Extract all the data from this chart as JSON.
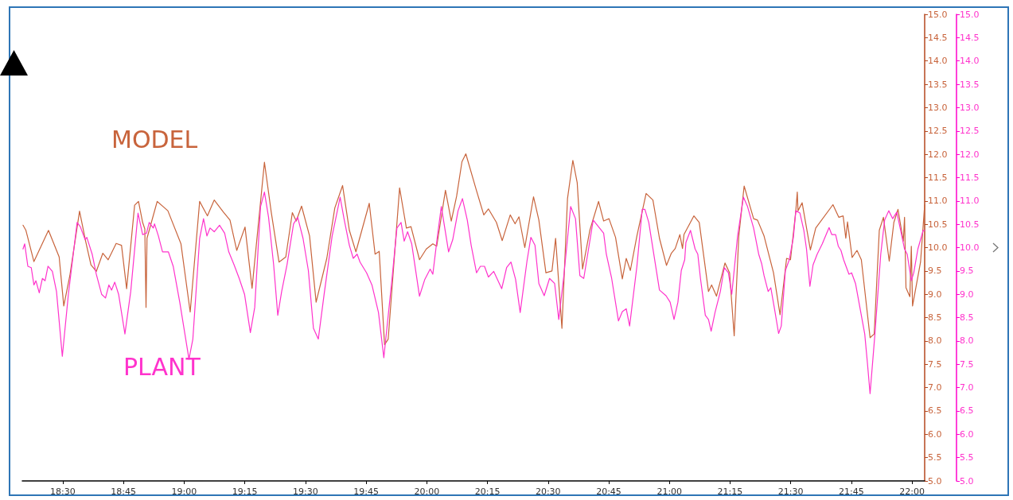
{
  "chart_data": {
    "type": "line",
    "xlim": [
      18.333,
      22.052
    ],
    "xticks": [
      {
        "value": 18.5,
        "label": "18:30"
      },
      {
        "value": 18.75,
        "label": "18:45"
      },
      {
        "value": 19,
        "label": "19:00"
      },
      {
        "value": 19.25,
        "label": "19:15"
      },
      {
        "value": 19.5,
        "label": "19:30"
      },
      {
        "value": 19.75,
        "label": "19:45"
      },
      {
        "value": 20,
        "label": "20:00"
      },
      {
        "value": 20.25,
        "label": "20:15"
      },
      {
        "value": 20.5,
        "label": "20:30"
      },
      {
        "value": 20.75,
        "label": "20:45"
      },
      {
        "value": 21,
        "label": "21:00"
      },
      {
        "value": 21.25,
        "label": "21:15"
      },
      {
        "value": 21.5,
        "label": "21:30"
      },
      {
        "value": 21.75,
        "label": "21:45"
      },
      {
        "value": 22,
        "label": "22:00"
      }
    ],
    "ylim": [
      5,
      15
    ],
    "yticks": [
      {
        "value": 5,
        "label": "5.0"
      },
      {
        "value": 5.5,
        "label": "5.5"
      },
      {
        "value": 6,
        "label": "6.0"
      },
      {
        "value": 6.5,
        "label": "6.5"
      },
      {
        "value": 7,
        "label": "7.0"
      },
      {
        "value": 7.5,
        "label": "7.5"
      },
      {
        "value": 8,
        "label": "8.0"
      },
      {
        "value": 8.5,
        "label": "8.5"
      },
      {
        "value": 9,
        "label": "9.0"
      },
      {
        "value": 9.5,
        "label": "9.5"
      },
      {
        "value": 10,
        "label": "10.0"
      },
      {
        "value": 10.5,
        "label": "10.5"
      },
      {
        "value": 11,
        "label": "11.0"
      },
      {
        "value": 11.5,
        "label": "11.5"
      },
      {
        "value": 12,
        "label": "12.0"
      },
      {
        "value": 12.5,
        "label": "12.5"
      },
      {
        "value": 13,
        "label": "13.0"
      },
      {
        "value": 13.5,
        "label": "13.5"
      },
      {
        "value": 14,
        "label": "14.0"
      },
      {
        "value": 14.5,
        "label": "14.5"
      },
      {
        "value": 15,
        "label": "15.0"
      }
    ],
    "y2lim": [
      5,
      15
    ],
    "y2ticks": [
      {
        "value": 5,
        "label": "5.0"
      },
      {
        "value": 5.5,
        "label": "5.5"
      },
      {
        "value": 6,
        "label": "6.0"
      },
      {
        "value": 6.5,
        "label": "6.5"
      },
      {
        "value": 7,
        "label": "7.0"
      },
      {
        "value": 7.5,
        "label": "7.5"
      },
      {
        "value": 8,
        "label": "8.0"
      },
      {
        "value": 8.5,
        "label": "8.5"
      },
      {
        "value": 9,
        "label": "9.0"
      },
      {
        "value": 9.5,
        "label": "9.5"
      },
      {
        "value": 10,
        "label": "10.0"
      },
      {
        "value": 10.5,
        "label": "10.5"
      },
      {
        "value": 11,
        "label": "11.0"
      },
      {
        "value": 11.5,
        "label": "11.5"
      },
      {
        "value": 12,
        "label": "12.0"
      },
      {
        "value": 12.5,
        "label": "12.5"
      },
      {
        "value": 13,
        "label": "13.0"
      },
      {
        "value": 13.5,
        "label": "13.5"
      },
      {
        "value": 14,
        "label": "14.0"
      },
      {
        "value": 14.5,
        "label": "14.5"
      },
      {
        "value": 15,
        "label": "15.0"
      }
    ],
    "grid": false,
    "legend": false,
    "marker": "none",
    "line_style": "solid",
    "series": [
      {
        "name": "MODEL",
        "color": "#c8643c",
        "x": [
          18.336,
          18.348,
          18.381,
          18.441,
          18.485,
          18.504,
          18.529,
          18.569,
          18.594,
          18.616,
          18.638,
          18.665,
          18.687,
          18.72,
          18.742,
          18.763,
          18.796,
          18.812,
          18.829,
          18.838,
          18.843,
          18.847,
          18.856,
          18.889,
          18.933,
          18.987,
          19.025,
          19.064,
          19.096,
          19.124,
          19.162,
          19.189,
          19.217,
          19.251,
          19.28,
          19.331,
          19.359,
          19.391,
          19.419,
          19.446,
          19.462,
          19.484,
          19.517,
          19.544,
          19.588,
          19.621,
          19.653,
          19.681,
          19.708,
          19.763,
          19.787,
          19.804,
          19.826,
          19.841,
          19.888,
          19.916,
          19.935,
          19.97,
          19.998,
          20.025,
          20.041,
          20.077,
          20.101,
          20.123,
          20.145,
          20.161,
          20.205,
          20.235,
          20.254,
          20.287,
          20.311,
          20.344,
          20.364,
          20.38,
          20.404,
          20.44,
          20.462,
          20.491,
          20.516,
          20.531,
          20.557,
          20.58,
          20.602,
          20.62,
          20.642,
          20.672,
          20.708,
          20.729,
          20.751,
          20.778,
          20.806,
          20.822,
          20.839,
          20.866,
          20.904,
          20.932,
          20.959,
          20.988,
          21.008,
          21.024,
          21.043,
          21.054,
          21.06,
          21.101,
          21.123,
          21.161,
          21.174,
          21.194,
          21.229,
          21.248,
          21.267,
          21.286,
          21.308,
          21.347,
          21.363,
          21.39,
          21.429,
          21.456,
          21.483,
          21.499,
          21.521,
          21.527,
          21.53,
          21.547,
          21.581,
          21.603,
          21.674,
          21.698,
          21.716,
          21.727,
          21.734,
          21.753,
          21.773,
          21.791,
          21.827,
          21.844,
          21.865,
          21.882,
          21.906,
          21.925,
          21.942,
          21.964,
          21.969,
          21.975,
          21.991,
          21.997,
          22.002,
          22.035,
          22.052
        ],
        "values": [
          10.48,
          10.37,
          9.7,
          10.37,
          9.8,
          8.75,
          9.4,
          10.78,
          10.14,
          9.63,
          9.49,
          9.88,
          9.74,
          10.09,
          10.05,
          9.12,
          10.91,
          10.99,
          10.54,
          10.4,
          8.72,
          10.2,
          10.37,
          10.99,
          10.79,
          10.08,
          8.62,
          10.99,
          10.68,
          11.02,
          10.76,
          10.59,
          9.94,
          10.44,
          9.13,
          11.83,
          10.76,
          9.69,
          9.8,
          10.75,
          10.57,
          10.89,
          10.25,
          8.83,
          9.77,
          10.85,
          11.33,
          10.37,
          9.91,
          10.95,
          9.86,
          9.92,
          7.92,
          8.04,
          11.28,
          10.42,
          10.45,
          9.74,
          9.97,
          10.08,
          10.03,
          11.23,
          10.57,
          11.1,
          11.84,
          12.01,
          11.22,
          10.7,
          10.83,
          10.54,
          10.15,
          10.7,
          10.51,
          10.66,
          10.0,
          11.09,
          10.59,
          9.46,
          9.5,
          10.2,
          8.27,
          11.05,
          11.87,
          11.39,
          9.54,
          10.37,
          10.99,
          10.57,
          10.62,
          10.22,
          9.33,
          9.77,
          9.51,
          10.25,
          11.16,
          11.02,
          10.2,
          9.62,
          9.88,
          9.98,
          10.28,
          9.98,
          10.28,
          10.68,
          10.54,
          9.06,
          9.2,
          8.96,
          9.67,
          9.46,
          8.11,
          10.25,
          11.32,
          10.62,
          10.59,
          10.25,
          9.46,
          8.56,
          9.77,
          9.74,
          10.79,
          11.19,
          10.79,
          10.96,
          9.95,
          10.42,
          10.92,
          10.65,
          10.68,
          10.2,
          10.55,
          9.79,
          9.94,
          9.74,
          8.07,
          8.15,
          10.37,
          10.65,
          9.71,
          10.54,
          10.82,
          10.14,
          10.65,
          9.14,
          8.95,
          10.03,
          8.75,
          9.69,
          10.92
        ]
      },
      {
        "name": "PLANT",
        "color": "#ff33cc",
        "axis": "y2",
        "x": [
          18.336,
          18.343,
          18.356,
          18.37,
          18.381,
          18.389,
          18.403,
          18.416,
          18.427,
          18.439,
          18.457,
          18.474,
          18.498,
          18.523,
          18.559,
          18.572,
          18.592,
          18.599,
          18.621,
          18.638,
          18.66,
          18.676,
          18.69,
          18.701,
          18.714,
          18.73,
          18.756,
          18.78,
          18.81,
          18.829,
          18.845,
          18.856,
          18.873,
          18.878,
          18.894,
          18.911,
          18.935,
          18.955,
          18.982,
          19.02,
          19.036,
          19.064,
          19.08,
          19.094,
          19.107,
          19.124,
          19.146,
          19.167,
          19.184,
          19.206,
          19.227,
          19.249,
          19.273,
          19.291,
          19.315,
          19.331,
          19.348,
          19.369,
          19.386,
          19.402,
          19.424,
          19.451,
          19.468,
          19.49,
          19.512,
          19.533,
          19.553,
          19.577,
          19.61,
          19.643,
          19.659,
          19.681,
          19.697,
          19.713,
          19.725,
          19.752,
          19.774,
          19.801,
          19.823,
          19.856,
          19.877,
          19.894,
          19.907,
          19.921,
          19.938,
          19.97,
          19.992,
          20.014,
          20.025,
          20.044,
          20.06,
          20.09,
          20.107,
          20.129,
          20.147,
          20.167,
          20.183,
          20.205,
          20.221,
          20.238,
          20.254,
          20.276,
          20.309,
          20.329,
          20.347,
          20.366,
          20.385,
          20.413,
          20.429,
          20.446,
          20.462,
          20.484,
          20.506,
          20.527,
          20.544,
          20.565,
          20.593,
          20.613,
          20.631,
          20.647,
          20.686,
          20.729,
          20.74,
          20.762,
          20.79,
          20.806,
          20.822,
          20.836,
          20.866,
          20.888,
          20.899,
          20.915,
          20.959,
          20.986,
          21.003,
          21.019,
          21.035,
          21.049,
          21.063,
          21.068,
          21.087,
          21.106,
          21.117,
          21.128,
          21.148,
          21.161,
          21.172,
          21.188,
          21.21,
          21.226,
          21.243,
          21.257,
          21.281,
          21.305,
          21.322,
          21.336,
          21.347,
          21.368,
          21.38,
          21.39,
          21.407,
          21.418,
          21.434,
          21.45,
          21.461,
          21.478,
          21.494,
          21.511,
          21.521,
          21.538,
          21.554,
          21.565,
          21.579,
          21.592,
          21.609,
          21.63,
          21.658,
          21.669,
          21.685,
          21.696,
          21.707,
          21.718,
          21.74,
          21.751,
          21.767,
          21.805,
          21.816,
          21.827,
          21.847,
          21.871,
          21.887,
          21.904,
          21.92,
          21.937,
          21.953,
          21.969,
          21.98,
          21.997,
          22.007,
          22.024,
          22.046,
          22.052
        ],
        "values": [
          9.97,
          10.08,
          9.6,
          9.57,
          9.2,
          9.29,
          9.03,
          9.34,
          9.29,
          9.6,
          9.49,
          9.06,
          7.67,
          9.0,
          10.54,
          10.45,
          10.17,
          10.22,
          9.86,
          9.43,
          9.0,
          8.92,
          9.2,
          9.09,
          9.26,
          9.0,
          8.15,
          9.06,
          10.74,
          10.28,
          10.31,
          10.54,
          10.42,
          10.51,
          10.25,
          9.91,
          9.91,
          9.6,
          8.83,
          7.61,
          8.04,
          10.2,
          10.62,
          10.25,
          10.42,
          10.34,
          10.48,
          10.31,
          9.91,
          9.63,
          9.34,
          9.0,
          8.18,
          8.72,
          10.88,
          11.19,
          10.65,
          9.63,
          8.55,
          9.06,
          9.63,
          10.51,
          10.65,
          10.2,
          9.51,
          8.27,
          8.04,
          9.0,
          10.25,
          11.08,
          10.62,
          10.05,
          9.77,
          9.86,
          9.69,
          9.46,
          9.2,
          8.61,
          7.64,
          9.29,
          10.42,
          10.54,
          10.14,
          10.34,
          10.08,
          8.96,
          9.32,
          9.54,
          9.43,
          10.25,
          10.88,
          9.91,
          10.17,
          10.79,
          11.05,
          10.59,
          10.05,
          9.46,
          9.6,
          9.6,
          9.37,
          9.49,
          9.12,
          9.57,
          9.69,
          9.32,
          8.61,
          9.71,
          10.22,
          10.05,
          9.23,
          8.97,
          9.34,
          9.23,
          8.46,
          9.4,
          10.88,
          10.62,
          9.4,
          9.34,
          10.59,
          10.31,
          9.86,
          9.34,
          8.43,
          8.63,
          8.69,
          8.32,
          9.6,
          10.82,
          10.82,
          10.54,
          9.09,
          8.97,
          8.83,
          8.46,
          8.83,
          9.51,
          9.74,
          10.11,
          10.37,
          9.97,
          9.86,
          9.34,
          8.55,
          8.46,
          8.21,
          8.61,
          9.06,
          9.57,
          9.46,
          9.0,
          10.25,
          11.08,
          10.88,
          10.62,
          10.42,
          9.86,
          9.66,
          9.4,
          9.06,
          9.14,
          8.66,
          8.16,
          8.32,
          9.51,
          9.74,
          10.22,
          10.79,
          10.74,
          10.37,
          9.97,
          9.17,
          9.63,
          9.86,
          10.08,
          10.43,
          10.28,
          10.28,
          10.03,
          9.94,
          9.74,
          9.43,
          9.46,
          9.23,
          8.15,
          7.53,
          6.87,
          8.15,
          9.86,
          10.59,
          10.79,
          10.62,
          10.76,
          10.37,
          9.97,
          9.86,
          9.29,
          9.46,
          9.97,
          10.37,
          10.37
        ]
      }
    ]
  }
}
